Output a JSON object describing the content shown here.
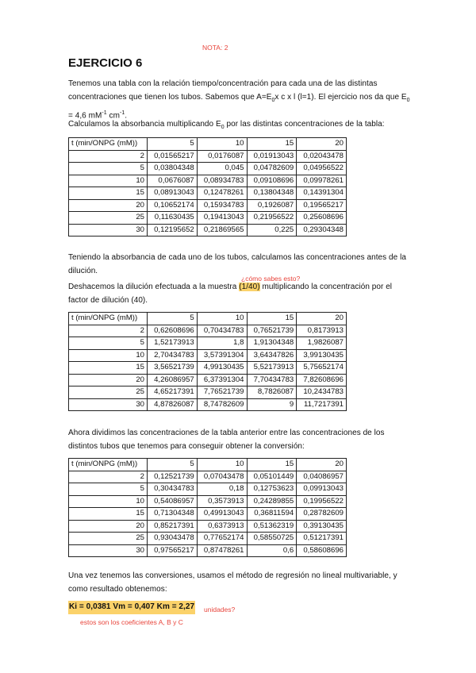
{
  "annotations": {
    "grade": "NOTA: 2",
    "question_dilution": "¿cómo sabes esto?",
    "units_question": "unidades?",
    "coefficients_note": "estos son los coeficientes A, B y C"
  },
  "title": "EJERCICIO 6",
  "intro": {
    "line1": "Tenemos una tabla con la relación tiempo/concentración para cada una de las distintas",
    "line2a": "concentraciones que tienen los tubos. Sabemos que A=E",
    "line2b": "x  c x l (l=1). El ejercicio nos da que E",
    "sub0": "0",
    "line3a": "= 4,6 mM",
    "sup": "-1",
    "line3b": " cm",
    "line3c": "."
  },
  "calc_intro": {
    "a": "Calculamos la absorbancia multiplicando E",
    "sub": "0",
    "b": " por las distintas concentraciones de la tabla:"
  },
  "header": [
    "t (min/ONPG (mM))",
    "5",
    "10",
    "15",
    "20"
  ],
  "tables": [
    [
      [
        "2",
        "0,01565217",
        "0,0176087",
        "0,01913043",
        "0,02043478"
      ],
      [
        "5",
        "0,03804348",
        "0,045",
        "0,04782609",
        "0,04956522"
      ],
      [
        "10",
        "0,0676087",
        "0,08934783",
        "0,09108696",
        "0,09978261"
      ],
      [
        "15",
        "0,08913043",
        "0,12478261",
        "0,13804348",
        "0,14391304"
      ],
      [
        "20",
        "0,10652174",
        "0,15934783",
        "0,1926087",
        "0,19565217"
      ],
      [
        "25",
        "0,11630435",
        "0,19413043",
        "0,21956522",
        "0,25608696"
      ],
      [
        "30",
        "0,12195652",
        "0,21869565",
        "0,225",
        "0,29304348"
      ]
    ],
    [
      [
        "2",
        "0,62608696",
        "0,70434783",
        "0,76521739",
        "0,8173913"
      ],
      [
        "5",
        "1,52173913",
        "1,8",
        "1,91304348",
        "1,9826087"
      ],
      [
        "10",
        "2,70434783",
        "3,57391304",
        "3,64347826",
        "3,99130435"
      ],
      [
        "15",
        "3,56521739",
        "4,99130435",
        "5,52173913",
        "5,75652174"
      ],
      [
        "20",
        "4,26086957",
        "6,37391304",
        "7,70434783",
        "7,82608696"
      ],
      [
        "25",
        "4,65217391",
        "7,76521739",
        "8,7826087",
        "10,2434783"
      ],
      [
        "30",
        "4,87826087",
        "8,74782609",
        "9",
        "11,7217391"
      ]
    ],
    [
      [
        "2",
        "0,12521739",
        "0,07043478",
        "0,05101449",
        "0,04086957"
      ],
      [
        "5",
        "0,30434783",
        "0,18",
        "0,12753623",
        "0,09913043"
      ],
      [
        "10",
        "0,54086957",
        "0,3573913",
        "0,24289855",
        "0,19956522"
      ],
      [
        "15",
        "0,71304348",
        "0,49913043",
        "0,36811594",
        "0,28782609"
      ],
      [
        "20",
        "0,85217391",
        "0,6373913",
        "0,51362319",
        "0,39130435"
      ],
      [
        "25",
        "0,93043478",
        "0,77652174",
        "0,58550725",
        "0,51217391"
      ],
      [
        "30",
        "0,97565217",
        "0,87478261",
        "0,6",
        "0,58608696"
      ]
    ]
  ],
  "para2": {
    "line1": "Teniendo la absorbancia de cada uno de los tubos, calculamos las concentraciones antes de la",
    "line2": "dilución.",
    "line3a": "Deshacemos la dilución efectuada a la muestra ",
    "line3hl": "(1/40)",
    "line3b": " multiplicando la concentración por el",
    "line4": "factor de dilución (40)."
  },
  "para3": {
    "line1": "Ahora dividimos las concentraciones de la tabla anterior entre las concentraciones de los",
    "line2": "distintos tubos que tenemos para conseguir obtener la conversión:"
  },
  "para4": {
    "line1": "Una vez tenemos las conversiones, usamos el método de regresión no lineal multivariable, y",
    "line2": "como resultado obtenemos:",
    "result": "Ki = 0,0381  Vm  = 0,407  Km = 2,27"
  },
  "colors": {
    "highlight": "#fbd26a",
    "annotation": "#e8453c"
  }
}
